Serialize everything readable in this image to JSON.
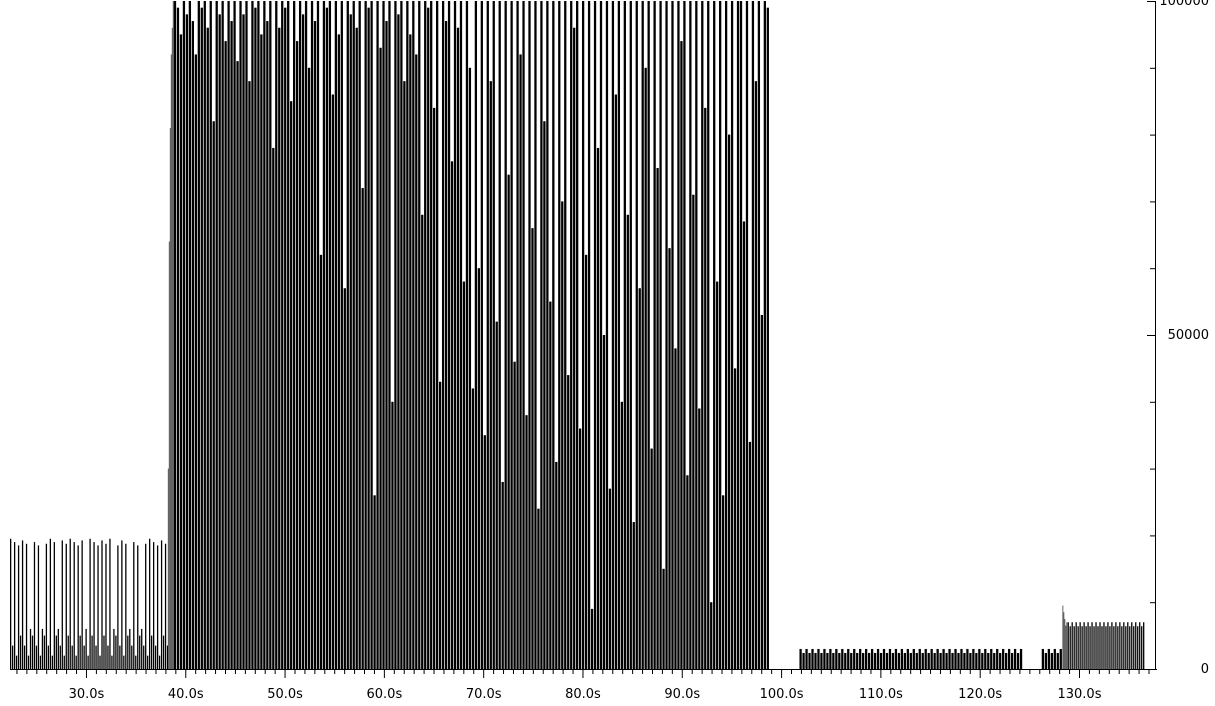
{
  "chart_data": {
    "type": "bar",
    "title": "",
    "xlabel": "",
    "ylabel": "",
    "xlim": [
      22.3,
      137.0
    ],
    "ylim": [
      0,
      100000
    ],
    "grid": false,
    "legend": "none",
    "x_ticks": [
      30,
      40,
      50,
      60,
      70,
      80,
      90,
      100,
      110,
      120,
      130
    ],
    "x_tick_labels": [
      "30.0s",
      "40.0s",
      "50.0s",
      "60.0s",
      "70.0s",
      "80.0s",
      "90.0s",
      "100.0s",
      "110.0s",
      "120.0s",
      "130.0s"
    ],
    "x_minor_tick_step": 1,
    "y_ticks": [
      0,
      10000,
      20000,
      30000,
      40000,
      50000,
      60000,
      70000,
      80000,
      90000,
      100000
    ],
    "y_tick_labels": [
      "0",
      "",
      "",
      "",
      "",
      "50000",
      "",
      "",
      "",
      "",
      "100000"
    ],
    "colors": {
      "bars": "#000000",
      "gap": "#ffffff",
      "axis": "#000000"
    },
    "segments": [
      {
        "start": 22.3,
        "end": 38.2,
        "step": 0.2,
        "hi": 19500,
        "lo": 2000,
        "pattern": "A"
      },
      {
        "start": 38.2,
        "end": 38.8,
        "step": 0.1,
        "values": [
          30000,
          64000,
          81000,
          92000,
          96000,
          100000
        ]
      },
      {
        "start": 38.8,
        "end": 68.8,
        "step": 0.3,
        "floor": 0,
        "values": [
          100000,
          99000,
          95000,
          100000,
          98000,
          100000,
          97000,
          92000,
          100000,
          99000,
          100000,
          96000,
          100000,
          82000,
          100000,
          98000,
          100000,
          94000,
          100000,
          97000,
          100000,
          91000,
          100000,
          98000,
          100000,
          88000,
          100000,
          99000,
          100000,
          95000,
          100000,
          97000,
          100000,
          78000,
          100000,
          96000,
          100000,
          99000,
          100000,
          85000,
          100000,
          94000,
          100000,
          98000,
          100000,
          90000,
          100000,
          97000,
          100000,
          62000,
          100000,
          99000,
          100000,
          86000,
          100000,
          95000,
          100000,
          57000,
          100000,
          98000,
          100000,
          96000,
          100000,
          72000,
          100000,
          99000,
          100000,
          26000,
          100000,
          93000,
          100000,
          97000,
          100000,
          40000,
          100000,
          98000,
          100000,
          88000,
          100000,
          95000,
          100000,
          92000,
          100000,
          68000,
          100000,
          99000,
          100000,
          84000,
          100000,
          43000,
          100000,
          97000,
          100000,
          76000,
          100000,
          96000,
          100000,
          58000,
          100000,
          90000
        ]
      },
      {
        "start": 68.8,
        "end": 98.8,
        "step": 0.3,
        "floor": 2000,
        "values": [
          42000,
          100000,
          60000,
          100000,
          35000,
          100000,
          88000,
          100000,
          52000,
          100000,
          28000,
          100000,
          74000,
          100000,
          46000,
          100000,
          92000,
          100000,
          38000,
          100000,
          66000,
          100000,
          24000,
          100000,
          82000,
          100000,
          55000,
          100000,
          31000,
          100000,
          70000,
          100000,
          44000,
          100000,
          96000,
          100000,
          36000,
          100000,
          62000,
          100000,
          9000,
          100000,
          78000,
          100000,
          50000,
          100000,
          27000,
          100000,
          86000,
          100000,
          40000,
          100000,
          68000,
          100000,
          22000,
          100000,
          57000,
          100000,
          90000,
          100000,
          33000,
          100000,
          75000,
          100000,
          15000,
          100000,
          63000,
          100000,
          48000,
          100000,
          94000,
          100000,
          29000,
          100000,
          71000,
          100000,
          39000,
          100000,
          84000,
          100000,
          10000,
          100000,
          58000,
          100000,
          26000,
          100000,
          80000,
          100000,
          45000,
          100000,
          100000,
          67000,
          100000,
          34000,
          100000,
          88000,
          100000,
          53000,
          100000,
          99000
        ]
      },
      {
        "start": 101.8,
        "end": 124.2,
        "step": 0.3,
        "hi": 3000,
        "lo": 0,
        "pattern": "pulse"
      },
      {
        "start": 126.2,
        "end": 128.3,
        "step": 0.3,
        "hi": 3000,
        "lo": 0,
        "pattern": "pulse"
      },
      {
        "start": 128.3,
        "end": 128.8,
        "step": 0.1,
        "values": [
          9500,
          8500,
          7500,
          6500,
          7000
        ]
      },
      {
        "start": 128.8,
        "end": 136.6,
        "step": 0.2,
        "hi": 7000,
        "lo": 5800,
        "pattern": "pulse"
      }
    ]
  }
}
